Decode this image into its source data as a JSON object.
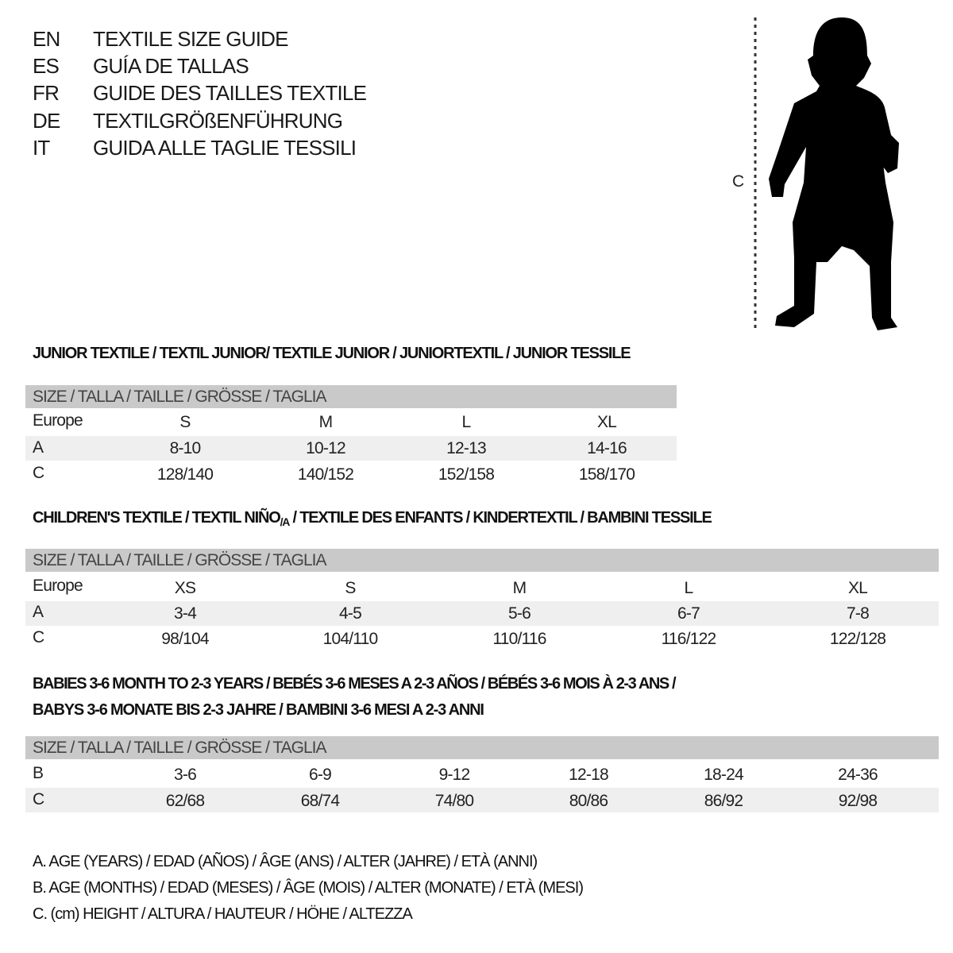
{
  "languages": [
    {
      "code": "EN",
      "title": "TEXTILE SIZE GUIDE"
    },
    {
      "code": "ES",
      "title": "GUÍA DE TALLAS"
    },
    {
      "code": "FR",
      "title": "GUIDE DES TAILLES TEXTILE"
    },
    {
      "code": "DE",
      "title": "TEXTILGRÖßENFÜHRUNG"
    },
    {
      "code": "IT",
      "title": "GUIDA ALLE TAGLIE TESSILI"
    }
  ],
  "figure": {
    "measure_label": "C",
    "icon": "child-silhouette-icon"
  },
  "junior": {
    "title": "JUNIOR TEXTILE / TEXTIL JUNIOR/ TEXTILE JUNIOR / JUNIORTEXTIL / JUNIOR TESSILE",
    "header": "SIZE / TALLA / TAILLE / GRÖSSE / TAGLIA",
    "rows": [
      {
        "label": "Europe",
        "values": [
          "S",
          "M",
          "L",
          "XL"
        ]
      },
      {
        "label": "A",
        "values": [
          "8-10",
          "10-12",
          "12-13",
          "14-16"
        ]
      },
      {
        "label": "C",
        "values": [
          "128/140",
          "140/152",
          "152/158",
          "158/170"
        ]
      }
    ]
  },
  "children": {
    "title_part1": "CHILDREN'S TEXTILE / TEXTIL NIÑO",
    "title_sub": "/A",
    "title_part2": " / TEXTILE DES ENFANTS / KINDERTEXTIL / BAMBINI TESSILE",
    "header": "SIZE / TALLA / TAILLE / GRÖSSE / TAGLIA",
    "rows": [
      {
        "label": "Europe",
        "values": [
          "XS",
          "S",
          "M",
          "L",
          "XL"
        ]
      },
      {
        "label": "A",
        "values": [
          "3-4",
          "4-5",
          "5-6",
          "6-7",
          "7-8"
        ]
      },
      {
        "label": "C",
        "values": [
          "98/104",
          "104/110",
          "110/116",
          "116/122",
          "122/128"
        ]
      }
    ]
  },
  "babies": {
    "title_line1": "BABIES 3-6 MONTH TO 2-3 YEARS / BEBÉS 3-6 MESES A 2-3 AÑOS / BÉBÉS 3-6 MOIS À 2-3 ANS /",
    "title_line2": "BABYS 3-6 MONATE BIS 2-3 JAHRE / BAMBINI 3-6 MESI A 2-3 ANNI",
    "header": "SIZE / TALLA / TAILLE / GRÖSSE / TAGLIA",
    "rows": [
      {
        "label": "B",
        "values": [
          "3-6",
          "6-9",
          "9-12",
          "12-18",
          "18-24",
          "24-36"
        ]
      },
      {
        "label": "C",
        "values": [
          "62/68",
          "68/74",
          "74/80",
          "80/86",
          "86/92",
          "92/98"
        ]
      }
    ]
  },
  "legend": [
    "A. AGE (YEARS) / EDAD (AÑOS) / ÂGE (ANS) / ALTER (JAHRE) / ETÀ (ANNI)",
    "B. AGE (MONTHS) / EDAD (MESES) / ÂGE (MOIS) / ALTER (MONATE) / ETÀ (MESI)",
    "C. (cm) HEIGHT / ALTURA / HAUTEUR / HÖHE / ALTEZZA"
  ],
  "colors": {
    "header_bar": "#c9c9c9",
    "row_shade": "#efefef",
    "text": "#1a1a1a"
  }
}
